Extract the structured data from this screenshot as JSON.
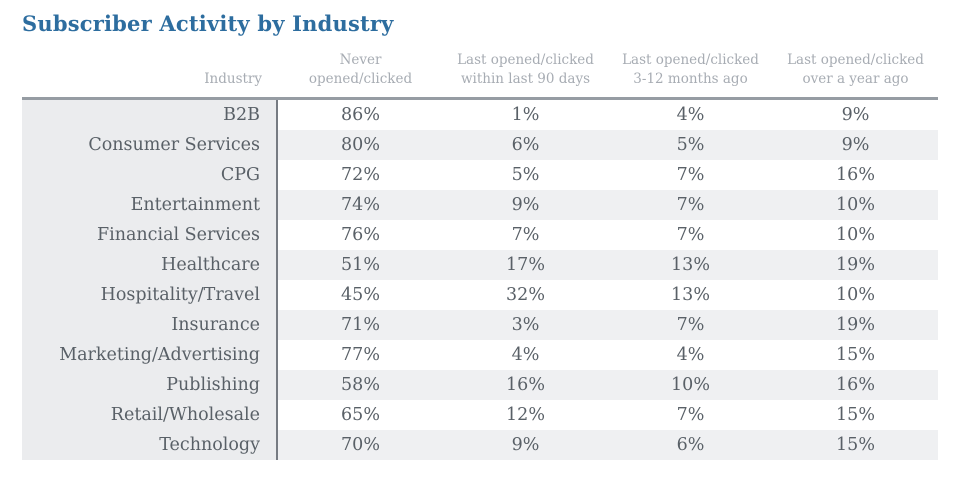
{
  "page": {
    "title": "Subscriber Activity by Industry"
  },
  "colors": {
    "title_blue": "#2d6d9f",
    "header_text": "#a7acb3",
    "body_text": "#596067",
    "header_rule": "#969ca3",
    "column_divider": "#767b82",
    "industry_column_bg": "#ebecee",
    "row_stripe_bg": "#eff0f2",
    "background": "#ffffff"
  },
  "chart_data": {
    "type": "table",
    "title": "Subscriber Activity by Industry",
    "unit": "percent",
    "columns": [
      "Industry",
      "Never opened/clicked",
      "Last opened/clicked within last 90 days",
      "Last opened/clicked 3-12 months ago",
      "Last opened/clicked over a year ago"
    ],
    "rows": [
      {
        "industry": "B2B",
        "values": [
          86,
          1,
          4,
          9
        ]
      },
      {
        "industry": "Consumer Services",
        "values": [
          80,
          6,
          5,
          9
        ]
      },
      {
        "industry": "CPG",
        "values": [
          72,
          5,
          7,
          16
        ]
      },
      {
        "industry": "Entertainment",
        "values": [
          74,
          9,
          7,
          10
        ]
      },
      {
        "industry": "Financial Services",
        "values": [
          76,
          7,
          7,
          10
        ]
      },
      {
        "industry": "Healthcare",
        "values": [
          51,
          17,
          13,
          19
        ]
      },
      {
        "industry": "Hospitality/Travel",
        "values": [
          45,
          32,
          13,
          10
        ]
      },
      {
        "industry": "Insurance",
        "values": [
          71,
          3,
          7,
          19
        ]
      },
      {
        "industry": "Marketing/Advertising",
        "values": [
          77,
          4,
          4,
          15
        ]
      },
      {
        "industry": "Publishing",
        "values": [
          58,
          16,
          10,
          16
        ]
      },
      {
        "industry": "Retail/Wholesale",
        "values": [
          65,
          12,
          7,
          15
        ]
      },
      {
        "industry": "Technology",
        "values": [
          70,
          9,
          6,
          15
        ]
      }
    ]
  }
}
